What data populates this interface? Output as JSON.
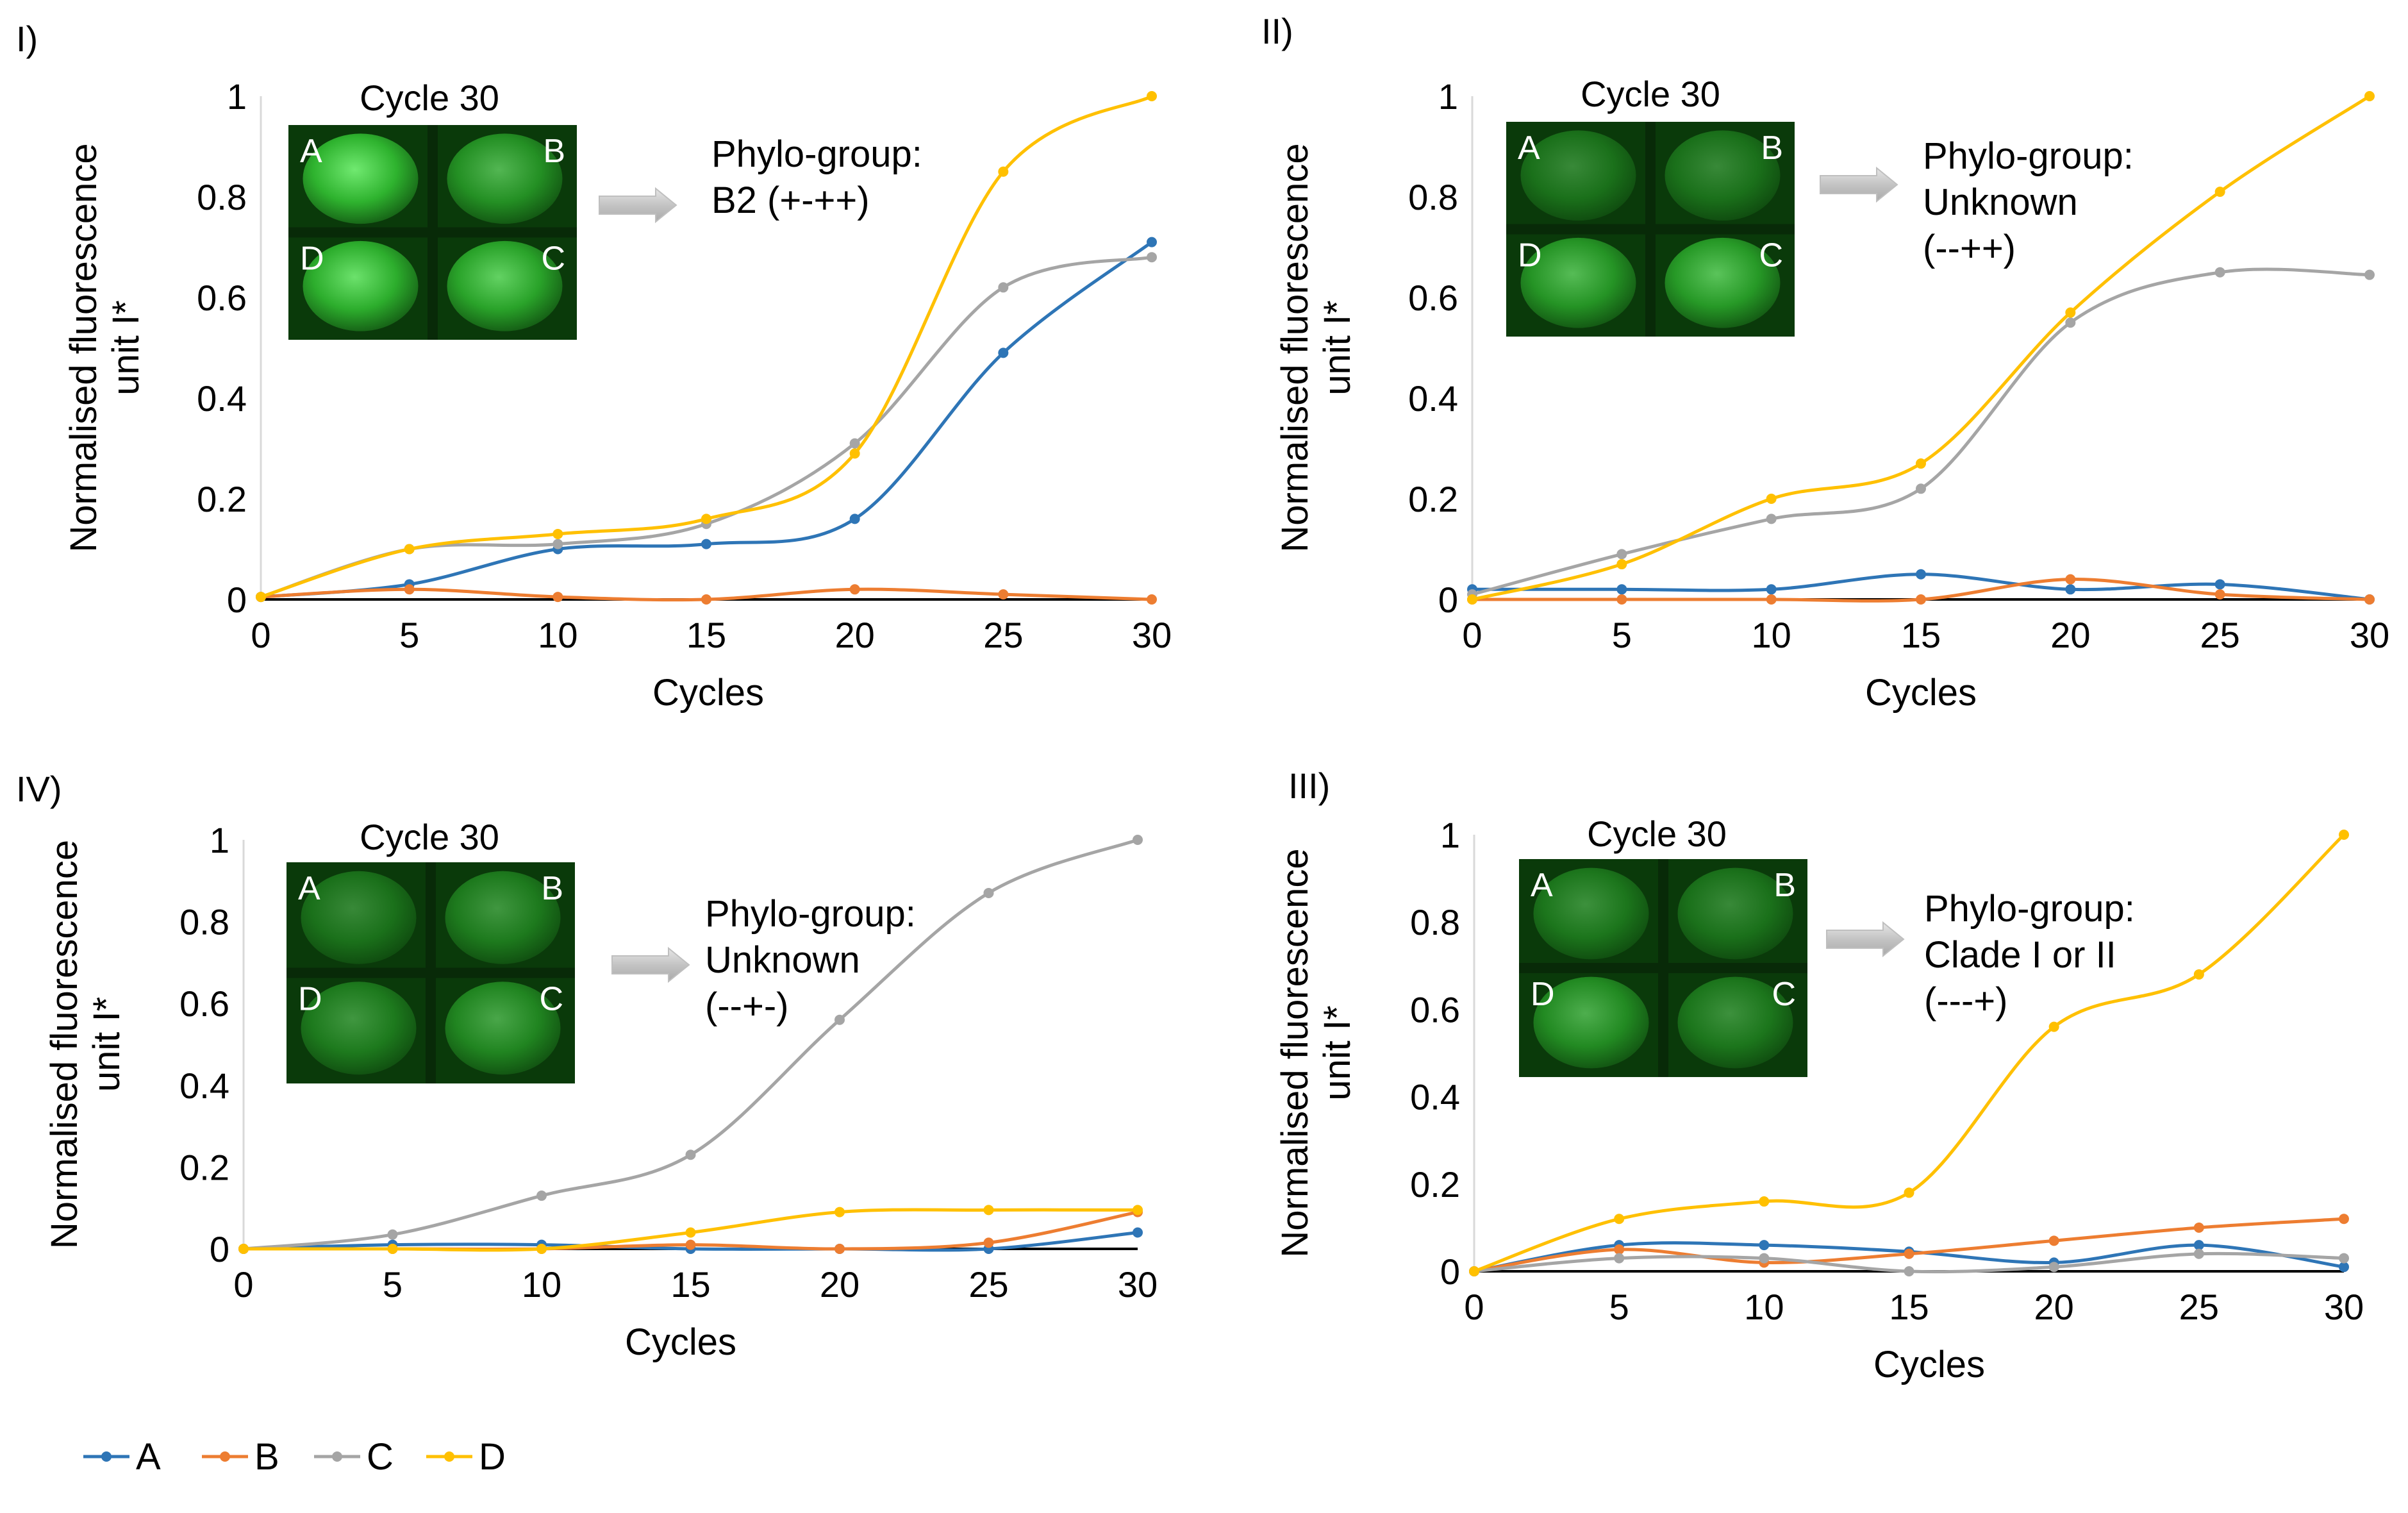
{
  "colors": {
    "A": "#2e75b6",
    "B": "#ed7d31",
    "C": "#a5a5a5",
    "D": "#ffc000",
    "inset_bg": "#0a3a0a",
    "well": "#1f7a1f"
  },
  "legend": [
    {
      "key": "A",
      "label": "A"
    },
    {
      "key": "B",
      "label": "B"
    },
    {
      "key": "C",
      "label": "C"
    },
    {
      "key": "D",
      "label": "D"
    }
  ],
  "chart_data": [
    {
      "panel": "I)",
      "type": "line",
      "x": [
        0,
        5,
        10,
        15,
        20,
        25,
        30
      ],
      "xlim": [
        0,
        30
      ],
      "ylim": [
        0,
        1
      ],
      "x_ticks": [
        "0",
        "5",
        "10",
        "15",
        "20",
        "25",
        "30"
      ],
      "y_ticks": [
        "0",
        "0.2",
        "0.4",
        "0.6",
        "0.8",
        "1"
      ],
      "xlabel": "Cycles",
      "ylabel_lines": [
        "Normalised fluorescence",
        "unit I*"
      ],
      "series": [
        {
          "name": "A",
          "values": [
            0.005,
            0.03,
            0.1,
            0.11,
            0.16,
            0.49,
            0.71
          ]
        },
        {
          "name": "B",
          "values": [
            0.005,
            0.02,
            0.005,
            0.0,
            0.02,
            0.01,
            0.0
          ]
        },
        {
          "name": "C",
          "values": [
            0.005,
            0.1,
            0.11,
            0.15,
            0.31,
            0.62,
            0.68
          ]
        },
        {
          "name": "D",
          "values": [
            0.005,
            0.1,
            0.13,
            0.16,
            0.29,
            0.85,
            1.0
          ]
        }
      ],
      "inset": {
        "title": "Cycle 30",
        "wells": [
          "A",
          "B",
          "D",
          "C"
        ],
        "brightness": [
          0.85,
          0.5,
          0.8,
          0.7
        ]
      },
      "annotation": [
        "Phylo-group:",
        "B2 (+-++)"
      ]
    },
    {
      "panel": "II)",
      "type": "line",
      "x": [
        0,
        5,
        10,
        15,
        20,
        25,
        30
      ],
      "xlim": [
        0,
        30
      ],
      "ylim": [
        0,
        1
      ],
      "x_ticks": [
        "0",
        "5",
        "10",
        "15",
        "20",
        "25",
        "30"
      ],
      "y_ticks": [
        "0",
        "0.2",
        "0.4",
        "0.6",
        "0.8",
        "1"
      ],
      "xlabel": "Cycles",
      "ylabel_lines": [
        "Normalised fluorescence",
        "unit I*"
      ],
      "series": [
        {
          "name": "A",
          "values": [
            0.02,
            0.02,
            0.02,
            0.05,
            0.02,
            0.03,
            0.0
          ]
        },
        {
          "name": "B",
          "values": [
            0.0,
            0.0,
            0.0,
            0.0,
            0.04,
            0.01,
            0.0
          ]
        },
        {
          "name": "C",
          "values": [
            0.01,
            0.09,
            0.16,
            0.22,
            0.55,
            0.65,
            0.645
          ]
        },
        {
          "name": "D",
          "values": [
            0.0,
            0.07,
            0.2,
            0.27,
            0.57,
            0.81,
            1.0
          ]
        }
      ],
      "inset": {
        "title": "Cycle 30",
        "wells": [
          "A",
          "B",
          "D",
          "C"
        ],
        "brightness": [
          0.2,
          0.2,
          0.55,
          0.6
        ]
      },
      "annotation": [
        "Phylo-group:",
        "Unknown",
        "(--++)"
      ]
    },
    {
      "panel": "IV)",
      "type": "line",
      "x": [
        0,
        5,
        10,
        15,
        20,
        25,
        30
      ],
      "xlim": [
        0,
        30
      ],
      "ylim": [
        0,
        1
      ],
      "x_ticks": [
        "0",
        "5",
        "10",
        "15",
        "20",
        "25",
        "30"
      ],
      "y_ticks": [
        "0",
        "0.2",
        "0.4",
        "0.6",
        "0.8",
        "1"
      ],
      "xlabel": "Cycles",
      "ylabel_lines": [
        "Normalised fluorescence",
        "unit I*"
      ],
      "series": [
        {
          "name": "A",
          "values": [
            0.0,
            0.01,
            0.01,
            0.0,
            0.0,
            0.0,
            0.04
          ]
        },
        {
          "name": "B",
          "values": [
            0.0,
            0.0,
            0.0,
            0.01,
            0.0,
            0.015,
            0.09
          ]
        },
        {
          "name": "C",
          "values": [
            0.0,
            0.035,
            0.13,
            0.23,
            0.56,
            0.87,
            1.0
          ]
        },
        {
          "name": "D",
          "values": [
            0.0,
            0.0,
            0.0,
            0.04,
            0.09,
            0.095,
            0.095
          ]
        }
      ],
      "inset": {
        "title": "Cycle 30",
        "wells": [
          "A",
          "B",
          "D",
          "C"
        ],
        "brightness": [
          0.2,
          0.3,
          0.3,
          0.4
        ]
      },
      "annotation": [
        "Phylo-group:",
        "Unknown",
        "(--+-)"
      ]
    },
    {
      "panel": "III)",
      "type": "line",
      "x": [
        0,
        5,
        10,
        15,
        20,
        25,
        30
      ],
      "xlim": [
        0,
        30
      ],
      "ylim": [
        0,
        1
      ],
      "x_ticks": [
        "0",
        "5",
        "10",
        "15",
        "20",
        "25",
        "30"
      ],
      "y_ticks": [
        "0",
        "0.2",
        "0.4",
        "0.6",
        "0.8",
        "1"
      ],
      "xlabel": "Cycles",
      "ylabel_lines": [
        "Normalised fluorescence",
        "unit I*"
      ],
      "series": [
        {
          "name": "A",
          "values": [
            0.0,
            0.06,
            0.06,
            0.045,
            0.02,
            0.06,
            0.01
          ]
        },
        {
          "name": "B",
          "values": [
            0.0,
            0.05,
            0.02,
            0.04,
            0.07,
            0.1,
            0.12
          ]
        },
        {
          "name": "C",
          "values": [
            0.0,
            0.03,
            0.03,
            0.0,
            0.01,
            0.04,
            0.03
          ]
        },
        {
          "name": "D",
          "values": [
            0.0,
            0.12,
            0.16,
            0.18,
            0.56,
            0.68,
            1.0
          ]
        }
      ],
      "inset": {
        "title": "Cycle 30",
        "wells": [
          "A",
          "B",
          "D",
          "C"
        ],
        "brightness": [
          0.25,
          0.2,
          0.45,
          0.25
        ]
      },
      "annotation": [
        "Phylo-group:",
        "Clade I or II",
        "(---+)"
      ]
    }
  ]
}
